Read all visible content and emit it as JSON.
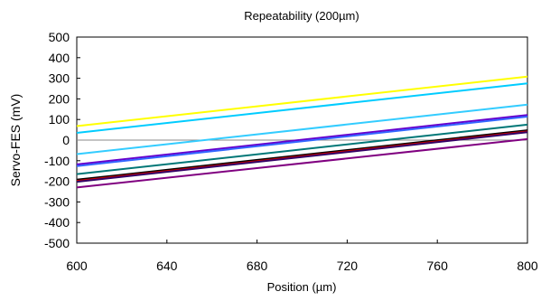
{
  "chart_data": {
    "type": "line",
    "title": "Repeatability (200µm)",
    "xlabel": "Position (µm)",
    "ylabel": "Servo-FES (mV)",
    "xlim": [
      600,
      800
    ],
    "ylim": [
      -500,
      500
    ],
    "x_ticks": [
      "600",
      "640",
      "680",
      "720",
      "760",
      "800"
    ],
    "y_ticks": [
      "500",
      "400",
      "300",
      "200",
      "100",
      "0",
      "-100",
      "-200",
      "-300",
      "-400",
      "-500"
    ],
    "grid": false,
    "zero_line": true,
    "x": [
      600,
      800
    ],
    "series": [
      {
        "color": "#ffff00",
        "values": [
          68,
          308
        ]
      },
      {
        "color": "#00ccff",
        "values": [
          35,
          275
        ]
      },
      {
        "color": "#33ccff",
        "values": [
          -68,
          172
        ]
      },
      {
        "color": "#6600cc",
        "values": [
          -118,
          122
        ]
      },
      {
        "color": "#3366ff",
        "values": [
          -126,
          114
        ]
      },
      {
        "color": "#007777",
        "values": [
          -165,
          75
        ]
      },
      {
        "color": "#000000",
        "values": [
          -192,
          48
        ]
      },
      {
        "color": "#cc0000",
        "values": [
          -198,
          42
        ]
      },
      {
        "color": "#330066",
        "values": [
          -202,
          38
        ]
      },
      {
        "color": "#800080",
        "values": [
          -230,
          5
        ]
      }
    ]
  }
}
